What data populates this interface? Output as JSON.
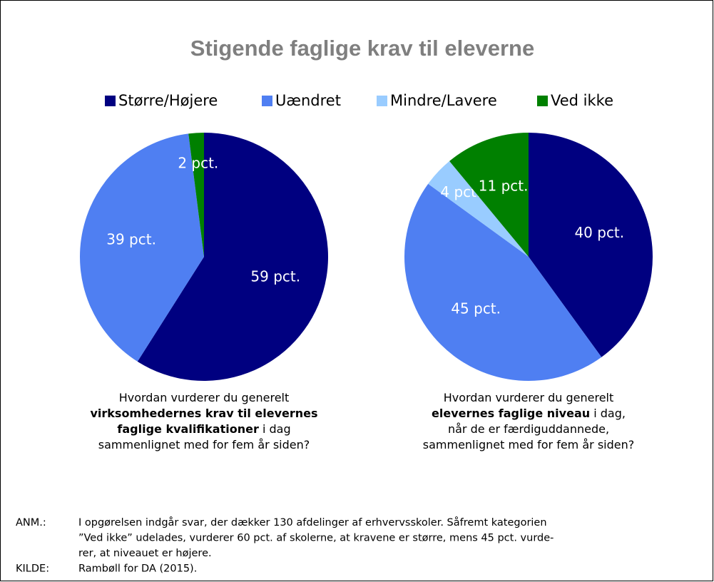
{
  "title": "Stigende faglige krav til eleverne",
  "chart_data": [
    {
      "type": "pie",
      "categories": [
        "Større/Højere",
        "Uændret",
        "Mindre/Lavere",
        "Ved ikke"
      ],
      "colors": [
        "#000080",
        "#4f7ff2",
        "#99ccff",
        "#008000"
      ],
      "values": [
        59,
        39,
        0,
        2
      ],
      "value_labels": [
        "59 pct.",
        "39 pct.",
        null,
        "2 pct."
      ],
      "caption": [
        [
          {
            "text": "Hvordan vurderer du generelt",
            "bold": false
          }
        ],
        [
          {
            "text": "virksomhedernes krav til elevernes",
            "bold": true
          }
        ],
        [
          {
            "text": "faglige kvalifikationer",
            "bold": true
          },
          {
            "text": " i dag",
            "bold": false
          }
        ],
        [
          {
            "text": "sammenlignet med for fem år siden?",
            "bold": false
          }
        ]
      ]
    },
    {
      "type": "pie",
      "categories": [
        "Større/Højere",
        "Uændret",
        "Mindre/Lavere",
        "Ved ikke"
      ],
      "colors": [
        "#000080",
        "#4f7ff2",
        "#99ccff",
        "#008000"
      ],
      "values": [
        40,
        45,
        4,
        11
      ],
      "value_labels": [
        "40 pct.",
        "45 pct.",
        "4 pct.",
        "11 pct."
      ],
      "caption": [
        [
          {
            "text": "Hvordan vurderer du generelt",
            "bold": false
          }
        ],
        [
          {
            "text": "elevernes faglige niveau",
            "bold": true
          },
          {
            "text": " i dag,",
            "bold": false
          }
        ],
        [
          {
            "text": "når de er færdiguddannede,",
            "bold": false
          }
        ],
        [
          {
            "text": "sammenlignet med for fem år siden?",
            "bold": false
          }
        ]
      ]
    }
  ],
  "notes": [
    {
      "label": "ANM.:",
      "lines": [
        "I opgørelsen indgår svar, der dækker 130 afdelinger af erhvervsskoler. Såfremt kategorien",
        "”Ved ikke” udelades, vurderer 60 pct. af skolerne, at kravene er større, mens 45 pct. vurde-",
        "rer, at niveauet er højere."
      ]
    },
    {
      "label": "KILDE:",
      "lines": [
        "Rambøll for DA (2015)."
      ]
    }
  ]
}
